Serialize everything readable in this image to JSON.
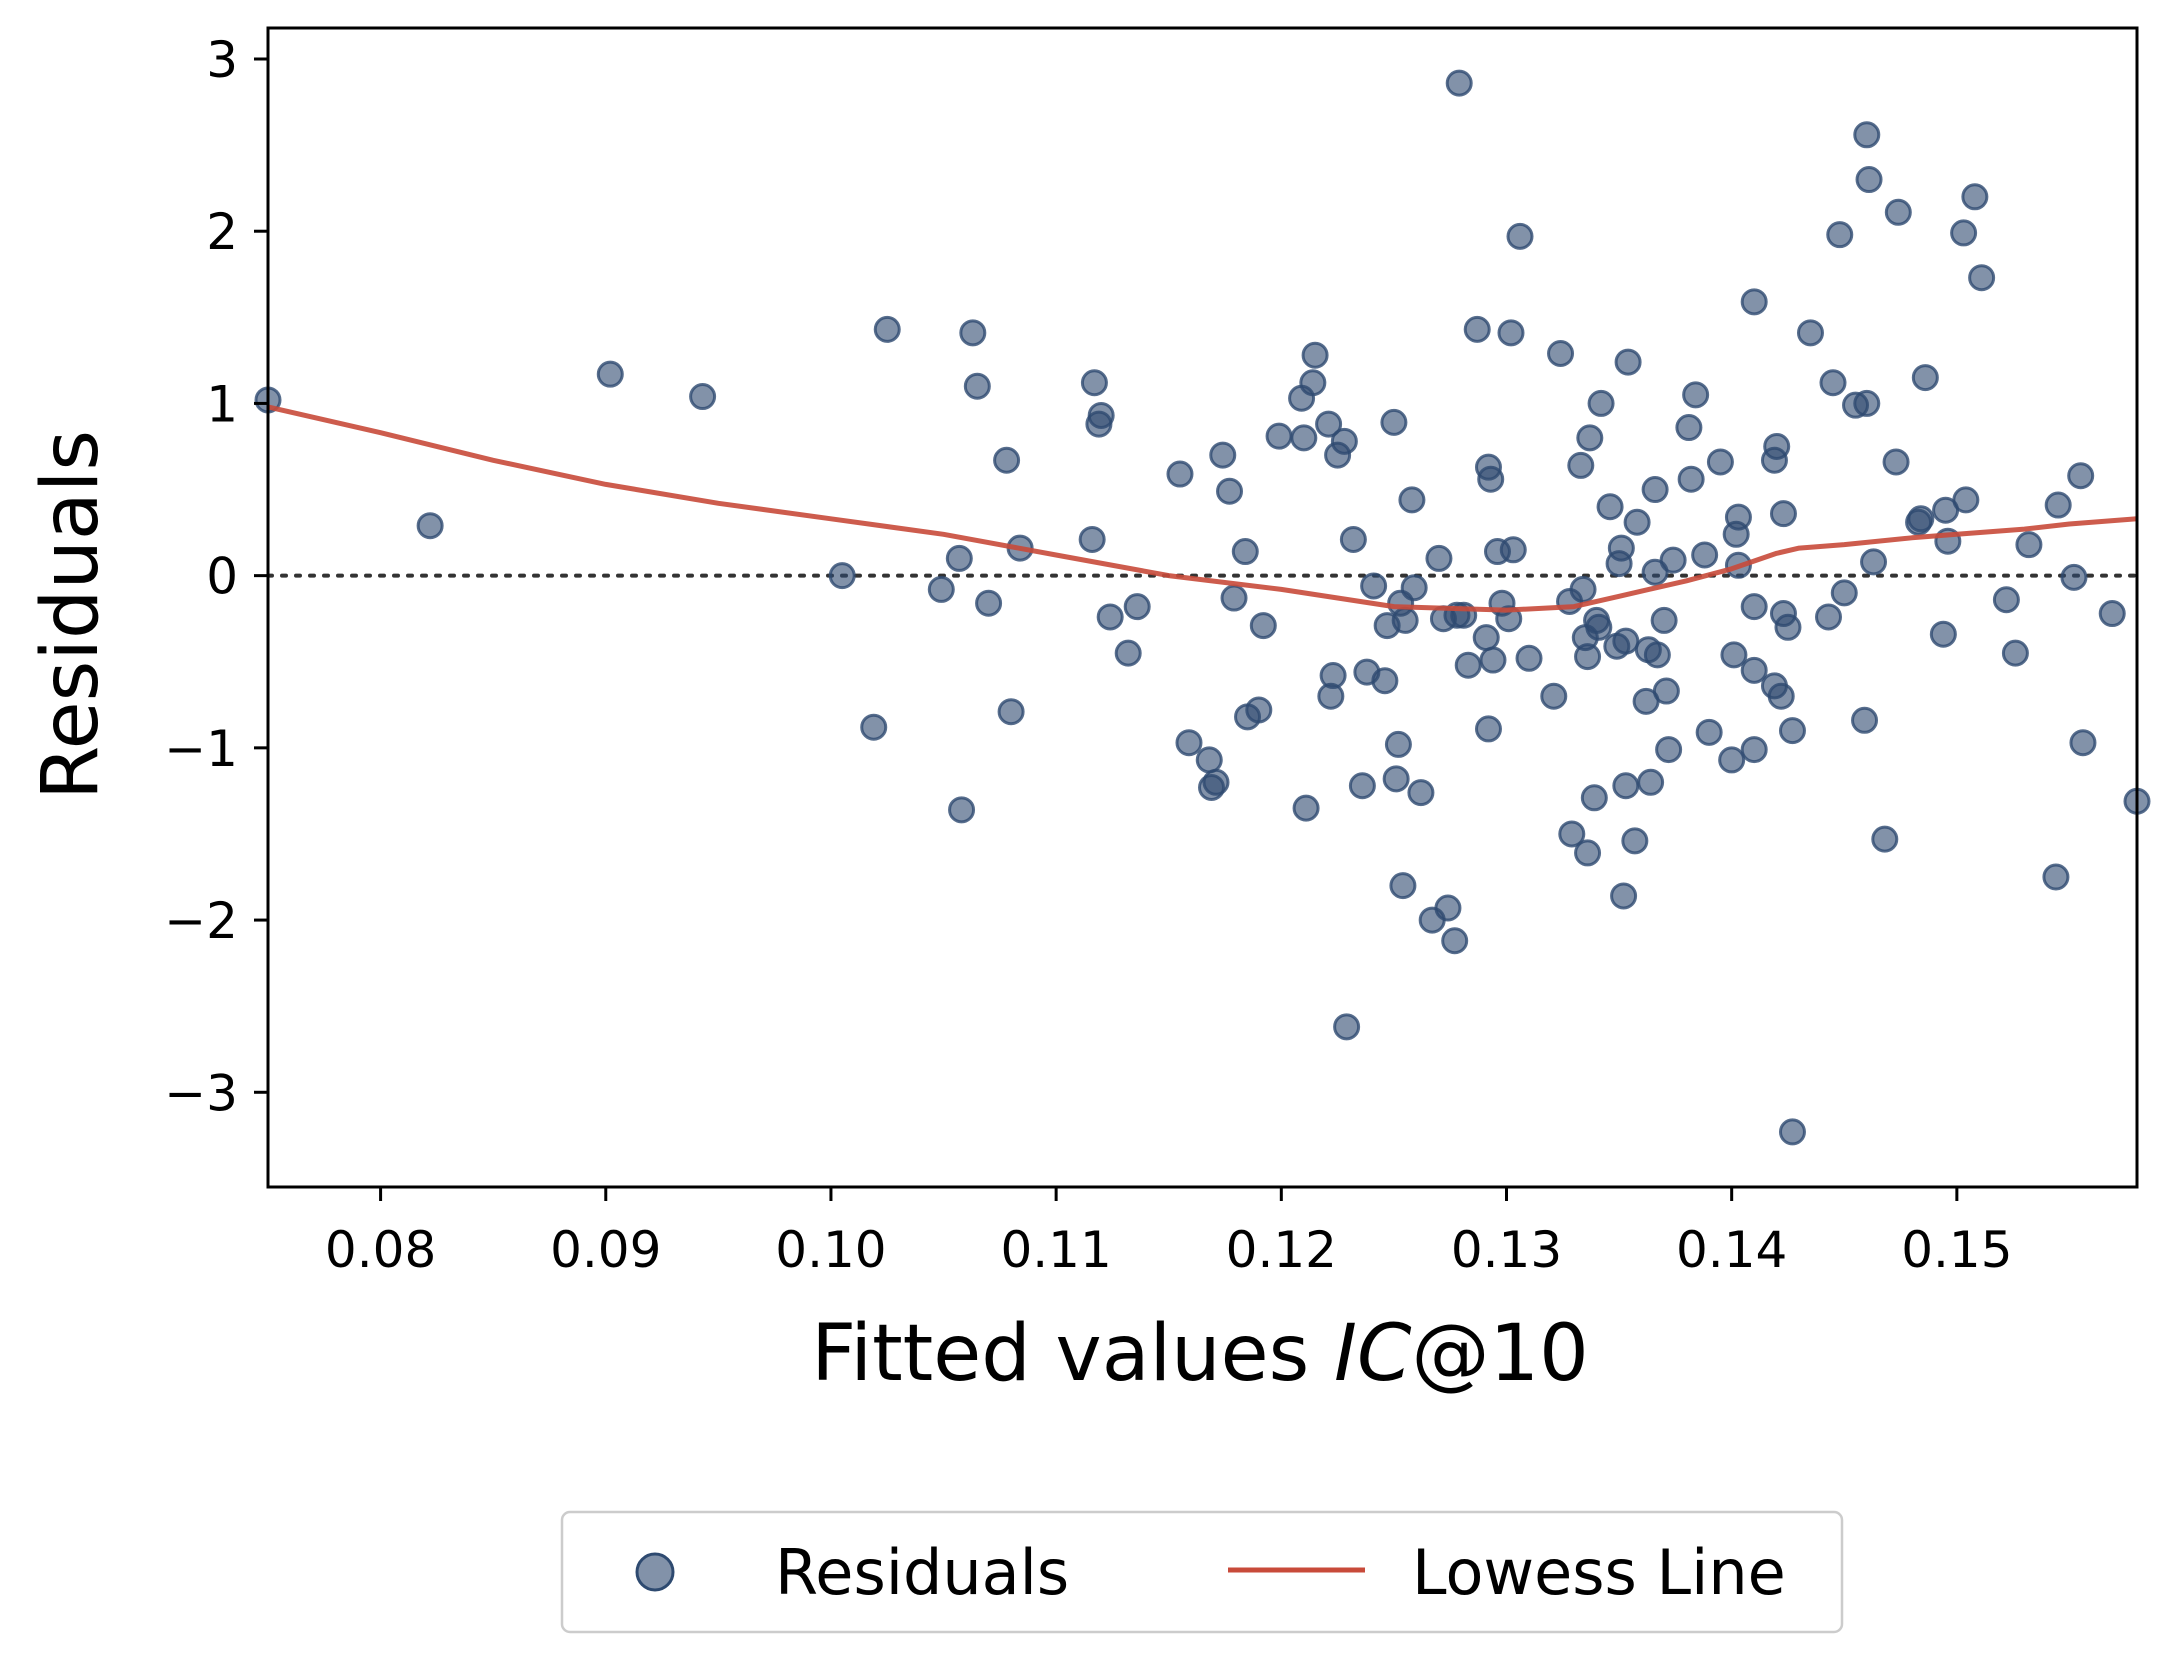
{
  "chart_data": {
    "type": "scatter",
    "xlabel_text": "Fitted values ",
    "xlabel_italic": "IC",
    "xlabel_suffix": "@10",
    "ylabel": "Residuals",
    "xlim": [
      0.075,
      0.158
    ],
    "ylim": [
      -3.55,
      3.18
    ],
    "x_ticks": [
      0.08,
      0.09,
      0.1,
      0.11,
      0.12,
      0.13,
      0.14,
      0.15
    ],
    "x_tick_labels": [
      "0.08",
      "0.09",
      "0.10",
      "0.11",
      "0.12",
      "0.13",
      "0.14",
      "0.15"
    ],
    "y_ticks": [
      -3,
      -2,
      -1,
      0,
      1,
      2,
      3
    ],
    "y_tick_labels": [
      "−3",
      "−2",
      "−1",
      "0",
      "1",
      "2",
      "3"
    ],
    "reference_line_y": 0,
    "legend": {
      "position": "bottom-center",
      "items": [
        "Residuals",
        "Lowess Line"
      ]
    },
    "colors": {
      "points": "#2e4a70",
      "lowess": "#c84a3a",
      "reference": "#333333"
    },
    "series": [
      {
        "name": "Residuals",
        "type": "scatter",
        "points": [
          [
            0.075,
            1.02
          ],
          [
            0.0822,
            0.29
          ],
          [
            0.0902,
            1.17
          ],
          [
            0.0943,
            1.04
          ],
          [
            0.1005,
            0.0
          ],
          [
            0.1019,
            -0.88
          ],
          [
            0.1025,
            1.43
          ],
          [
            0.1049,
            -0.08
          ],
          [
            0.1057,
            0.1
          ],
          [
            0.1058,
            -1.36
          ],
          [
            0.1063,
            1.41
          ],
          [
            0.1065,
            1.1
          ],
          [
            0.107,
            -0.16
          ],
          [
            0.1078,
            0.67
          ],
          [
            0.108,
            -0.79
          ],
          [
            0.1084,
            0.16
          ],
          [
            0.1116,
            0.21
          ],
          [
            0.1117,
            1.12
          ],
          [
            0.1119,
            0.88
          ],
          [
            0.112,
            0.93
          ],
          [
            0.1124,
            -0.24
          ],
          [
            0.1132,
            -0.45
          ],
          [
            0.1136,
            -0.18
          ],
          [
            0.1155,
            0.59
          ],
          [
            0.1159,
            -0.97
          ],
          [
            0.1168,
            -1.07
          ],
          [
            0.1169,
            -1.23
          ],
          [
            0.1171,
            -1.2
          ],
          [
            0.1174,
            0.7
          ],
          [
            0.1177,
            0.49
          ],
          [
            0.1179,
            -0.13
          ],
          [
            0.1184,
            0.14
          ],
          [
            0.1185,
            -0.82
          ],
          [
            0.119,
            -0.78
          ],
          [
            0.1192,
            -0.29
          ],
          [
            0.1199,
            0.81
          ],
          [
            0.1209,
            1.03
          ],
          [
            0.121,
            0.8
          ],
          [
            0.1211,
            -1.35
          ],
          [
            0.1214,
            1.12
          ],
          [
            0.1215,
            1.28
          ],
          [
            0.1221,
            0.88
          ],
          [
            0.1222,
            -0.7
          ],
          [
            0.1223,
            -0.58
          ],
          [
            0.1225,
            0.7
          ],
          [
            0.1228,
            0.78
          ],
          [
            0.1229,
            -2.62
          ],
          [
            0.1232,
            0.21
          ],
          [
            0.1236,
            -1.22
          ],
          [
            0.1238,
            -0.56
          ],
          [
            0.1241,
            -0.06
          ],
          [
            0.1246,
            -0.61
          ],
          [
            0.1247,
            -0.29
          ],
          [
            0.125,
            0.89
          ],
          [
            0.1251,
            -1.18
          ],
          [
            0.1252,
            -0.98
          ],
          [
            0.1253,
            -0.16
          ],
          [
            0.1254,
            -1.8
          ],
          [
            0.1255,
            -0.26
          ],
          [
            0.1258,
            0.44
          ],
          [
            0.1259,
            -0.07
          ],
          [
            0.1262,
            -1.26
          ],
          [
            0.1267,
            -2.0
          ],
          [
            0.127,
            0.1
          ],
          [
            0.1272,
            -0.25
          ],
          [
            0.1274,
            -1.93
          ],
          [
            0.1277,
            -2.12
          ],
          [
            0.1278,
            -0.23
          ],
          [
            0.1279,
            2.86
          ],
          [
            0.1281,
            -0.23
          ],
          [
            0.1283,
            -0.52
          ],
          [
            0.1287,
            1.43
          ],
          [
            0.1291,
            -0.36
          ],
          [
            0.1292,
            -0.89
          ],
          [
            0.1292,
            0.63
          ],
          [
            0.1293,
            0.56
          ],
          [
            0.1294,
            -0.49
          ],
          [
            0.1296,
            0.14
          ],
          [
            0.1298,
            -0.16
          ],
          [
            0.1301,
            -0.25
          ],
          [
            0.1302,
            1.41
          ],
          [
            0.1303,
            0.15
          ],
          [
            0.1306,
            1.97
          ],
          [
            0.131,
            -0.48
          ],
          [
            0.1321,
            -0.7
          ],
          [
            0.1324,
            1.29
          ],
          [
            0.1328,
            -0.15
          ],
          [
            0.1329,
            -1.5
          ],
          [
            0.1333,
            0.64
          ],
          [
            0.1334,
            -0.08
          ],
          [
            0.1335,
            -0.36
          ],
          [
            0.1336,
            -0.47
          ],
          [
            0.1336,
            -1.61
          ],
          [
            0.1337,
            0.8
          ],
          [
            0.1339,
            -1.29
          ],
          [
            0.134,
            -0.26
          ],
          [
            0.1341,
            -0.3
          ],
          [
            0.1342,
            1.0
          ],
          [
            0.1346,
            0.4
          ],
          [
            0.1349,
            -0.41
          ],
          [
            0.135,
            0.07
          ],
          [
            0.1351,
            0.16
          ],
          [
            0.1352,
            -1.86
          ],
          [
            0.1353,
            -1.22
          ],
          [
            0.1353,
            -0.38
          ],
          [
            0.1354,
            1.24
          ],
          [
            0.1357,
            -1.54
          ],
          [
            0.1358,
            0.31
          ],
          [
            0.1362,
            -0.73
          ],
          [
            0.1363,
            -0.43
          ],
          [
            0.1364,
            -1.2
          ],
          [
            0.1366,
            0.5
          ],
          [
            0.1367,
            -0.46
          ],
          [
            0.1366,
            0.02
          ],
          [
            0.137,
            -0.26
          ],
          [
            0.1371,
            -0.67
          ],
          [
            0.1372,
            -1.01
          ],
          [
            0.1374,
            0.09
          ],
          [
            0.1381,
            0.86
          ],
          [
            0.1382,
            0.56
          ],
          [
            0.1384,
            1.05
          ],
          [
            0.1388,
            0.12
          ],
          [
            0.139,
            -0.91
          ],
          [
            0.1395,
            0.66
          ],
          [
            0.14,
            -1.07
          ],
          [
            0.1401,
            -0.46
          ],
          [
            0.1402,
            0.24
          ],
          [
            0.1403,
            0.34
          ],
          [
            0.1403,
            0.06
          ],
          [
            0.141,
            -0.18
          ],
          [
            0.141,
            -0.55
          ],
          [
            0.141,
            -1.01
          ],
          [
            0.141,
            1.59
          ],
          [
            0.1419,
            -0.64
          ],
          [
            0.1419,
            0.67
          ],
          [
            0.142,
            0.75
          ],
          [
            0.1422,
            -0.7
          ],
          [
            0.1423,
            0.36
          ],
          [
            0.1423,
            -0.22
          ],
          [
            0.1425,
            -0.3
          ],
          [
            0.1427,
            -0.9
          ],
          [
            0.1427,
            -3.23
          ],
          [
            0.1435,
            1.41
          ],
          [
            0.1443,
            -0.24
          ],
          [
            0.1445,
            1.12
          ],
          [
            0.1448,
            1.98
          ],
          [
            0.145,
            -0.1
          ],
          [
            0.1455,
            0.99
          ],
          [
            0.1459,
            -0.84
          ],
          [
            0.146,
            2.56
          ],
          [
            0.146,
            1.0
          ],
          [
            0.1461,
            2.3
          ],
          [
            0.1463,
            0.08
          ],
          [
            0.1468,
            -1.53
          ],
          [
            0.1473,
            0.66
          ],
          [
            0.1474,
            2.11
          ],
          [
            0.1483,
            0.31
          ],
          [
            0.1484,
            0.33
          ],
          [
            0.1486,
            1.15
          ],
          [
            0.1494,
            -0.34
          ],
          [
            0.1495,
            0.38
          ],
          [
            0.1496,
            0.2
          ],
          [
            0.1503,
            1.99
          ],
          [
            0.1504,
            0.44
          ],
          [
            0.1508,
            2.2
          ],
          [
            0.1511,
            1.73
          ],
          [
            0.1522,
            -0.14
          ],
          [
            0.1526,
            -0.45
          ],
          [
            0.1532,
            0.18
          ],
          [
            0.1544,
            -1.75
          ],
          [
            0.1545,
            0.41
          ],
          [
            0.1552,
            -0.01
          ],
          [
            0.1555,
            0.58
          ],
          [
            0.1556,
            -0.97
          ],
          [
            0.1569,
            -0.22
          ],
          [
            0.158,
            -1.31
          ]
        ]
      },
      {
        "name": "Lowess Line",
        "type": "line",
        "points": [
          [
            0.075,
            0.98
          ],
          [
            0.08,
            0.83
          ],
          [
            0.085,
            0.67
          ],
          [
            0.09,
            0.53
          ],
          [
            0.095,
            0.42
          ],
          [
            0.1,
            0.33
          ],
          [
            0.105,
            0.24
          ],
          [
            0.11,
            0.12
          ],
          [
            0.115,
            0.0
          ],
          [
            0.12,
            -0.08
          ],
          [
            0.125,
            -0.18
          ],
          [
            0.13,
            -0.2
          ],
          [
            0.133,
            -0.18
          ],
          [
            0.135,
            -0.12
          ],
          [
            0.138,
            -0.03
          ],
          [
            0.14,
            0.04
          ],
          [
            0.142,
            0.13
          ],
          [
            0.143,
            0.16
          ],
          [
            0.145,
            0.18
          ],
          [
            0.148,
            0.22
          ],
          [
            0.15,
            0.24
          ],
          [
            0.153,
            0.27
          ],
          [
            0.155,
            0.3
          ],
          [
            0.158,
            0.33
          ]
        ]
      }
    ]
  }
}
